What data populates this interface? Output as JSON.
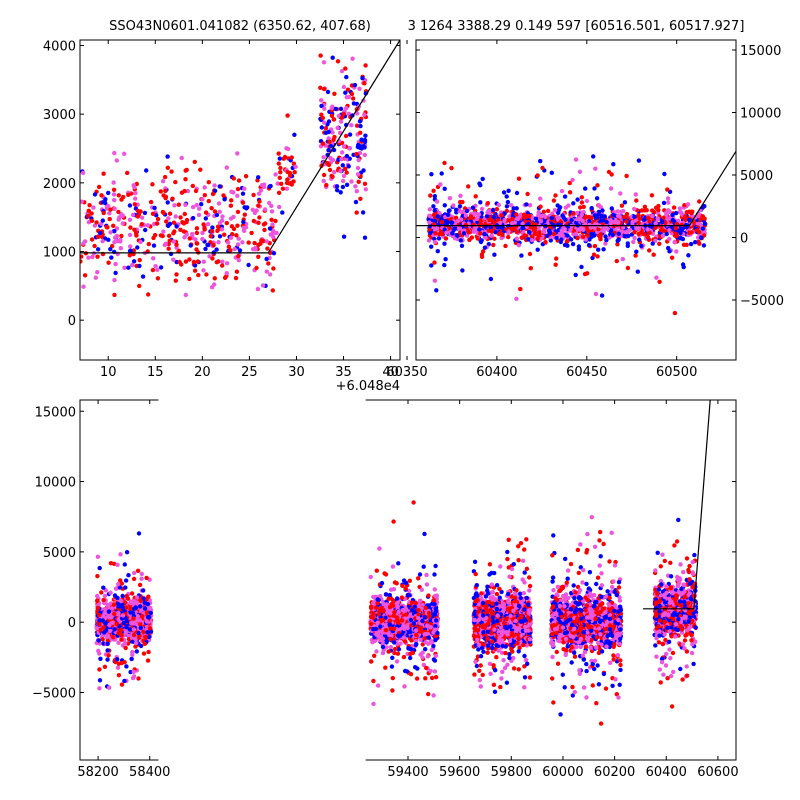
{
  "title_left": "SSO43N0601.041082 (6350.62, 407.68)",
  "title_right": "3 1264 3388.29 0.149 597 [60516.501, 60517.927]",
  "colors": {
    "red": "#ff0000",
    "blue": "#0000ff",
    "pink": "#ee55dd",
    "line": "#000000"
  },
  "chart_data": [
    {
      "type": "scatter",
      "panel": "top-left",
      "xlim": [
        7,
        41
      ],
      "ylim": [
        -580,
        4080
      ],
      "x_offset_label": "+6.048e4",
      "xticks": [
        10,
        15,
        20,
        25,
        30,
        35,
        40
      ],
      "xtick_labels": [
        "10",
        "15",
        "20",
        "25",
        "30",
        "35",
        "40"
      ],
      "yticks": [
        0,
        1000,
        2000,
        3000,
        4000
      ],
      "ytick_labels": [
        "0",
        "1000",
        "2000",
        "3000",
        "4000"
      ],
      "model_line": {
        "x": [
          7,
          27,
          41
        ],
        "y": [
          980,
          980,
          4080
        ]
      },
      "clusters": [
        {
          "x": [
            7,
            28
          ],
          "y_center": 1350,
          "y_spread": 900,
          "count": 520,
          "color_weights": [
            0.45,
            0.2,
            0.35
          ]
        },
        {
          "x": [
            28,
            30
          ],
          "y_center": 2100,
          "y_spread": 700,
          "count": 40,
          "color_weights": [
            0.7,
            0.15,
            0.15
          ]
        },
        {
          "x": [
            32.5,
            37.5
          ],
          "y_center": 2700,
          "y_spread": 1200,
          "count": 220,
          "color_weights": [
            0.3,
            0.35,
            0.35
          ]
        }
      ]
    },
    {
      "type": "scatter",
      "panel": "top-right",
      "xlim": [
        60355,
        60533
      ],
      "ylim": [
        -9800,
        15800
      ],
      "xticks": [
        60350,
        60400,
        60450,
        60500
      ],
      "xtick_labels": [
        "60350",
        "60400",
        "60450",
        "60500"
      ],
      "yticks": [
        -5000,
        0,
        5000,
        10000,
        15000
      ],
      "ytick_labels": [
        "−5000",
        "0",
        "5000",
        "10000",
        "15000"
      ],
      "model_line": {
        "x": [
          60355,
          60507,
          60533
        ],
        "y": [
          950,
          950,
          6900
        ]
      },
      "clusters": [
        {
          "x": [
            60362,
            60516
          ],
          "y_center": 1000,
          "y_spread": 1400,
          "count": 1500,
          "color_weights": [
            0.3,
            0.3,
            0.4
          ]
        },
        {
          "x": [
            60362,
            60516
          ],
          "y_center": 900,
          "y_spread": 5000,
          "count": 280,
          "color_weights": [
            0.35,
            0.4,
            0.25
          ]
        }
      ]
    },
    {
      "type": "scatter",
      "panel": "bottom",
      "xlim": [
        58130,
        60670
      ],
      "ylim": [
        -9800,
        15800
      ],
      "xticks": [
        58200,
        58400,
        59400,
        59600,
        59800,
        60000,
        60200,
        60400,
        60600
      ],
      "xtick_labels": [
        "58200",
        "58400",
        "59400",
        "59600",
        "59800",
        "60000",
        "60200",
        "60400",
        "60600"
      ],
      "yticks": [
        -5000,
        0,
        5000,
        10000,
        15000
      ],
      "ytick_labels": [
        "−5000",
        "0",
        "5000",
        "10000",
        "15000"
      ],
      "axis_breaks": [
        {
          "x_left": 58430,
          "x_right": 59240
        }
      ],
      "model_line": {
        "x": [
          60310,
          60507,
          60570
        ],
        "y": [
          950,
          950,
          15800
        ]
      },
      "clusters": [
        {
          "x": [
            58195,
            58405
          ],
          "y_center": 100,
          "y_spread": 1400,
          "count": 1100,
          "color_weights": [
            0.25,
            0.15,
            0.6
          ]
        },
        {
          "x": [
            58195,
            58405
          ],
          "y_center": 0,
          "y_spread": 4800,
          "count": 200,
          "color_weights": [
            0.35,
            0.35,
            0.3
          ]
        },
        {
          "x": [
            59255,
            59515
          ],
          "y_center": 100,
          "y_spread": 1500,
          "count": 1300,
          "color_weights": [
            0.25,
            0.2,
            0.55
          ]
        },
        {
          "x": [
            59255,
            59515
          ],
          "y_center": 0,
          "y_spread": 5000,
          "count": 230,
          "color_weights": [
            0.35,
            0.35,
            0.3
          ]
        },
        {
          "x": [
            59655,
            59875
          ],
          "y_center": 0,
          "y_spread": 1700,
          "count": 1300,
          "color_weights": [
            0.3,
            0.25,
            0.45
          ]
        },
        {
          "x": [
            59655,
            59875
          ],
          "y_center": 0,
          "y_spread": 5200,
          "count": 240,
          "color_weights": [
            0.35,
            0.35,
            0.3
          ]
        },
        {
          "x": [
            59955,
            60225
          ],
          "y_center": 0,
          "y_spread": 1700,
          "count": 1300,
          "color_weights": [
            0.3,
            0.25,
            0.45
          ]
        },
        {
          "x": [
            59955,
            60225
          ],
          "y_center": 0,
          "y_spread": 5500,
          "count": 260,
          "color_weights": [
            0.35,
            0.35,
            0.3
          ]
        },
        {
          "x": [
            60355,
            60515
          ],
          "y_center": 900,
          "y_spread": 1600,
          "count": 800,
          "color_weights": [
            0.3,
            0.3,
            0.4
          ]
        },
        {
          "x": [
            60355,
            60515
          ],
          "y_center": 500,
          "y_spread": 4800,
          "count": 200,
          "color_weights": [
            0.35,
            0.35,
            0.3
          ]
        }
      ]
    }
  ]
}
